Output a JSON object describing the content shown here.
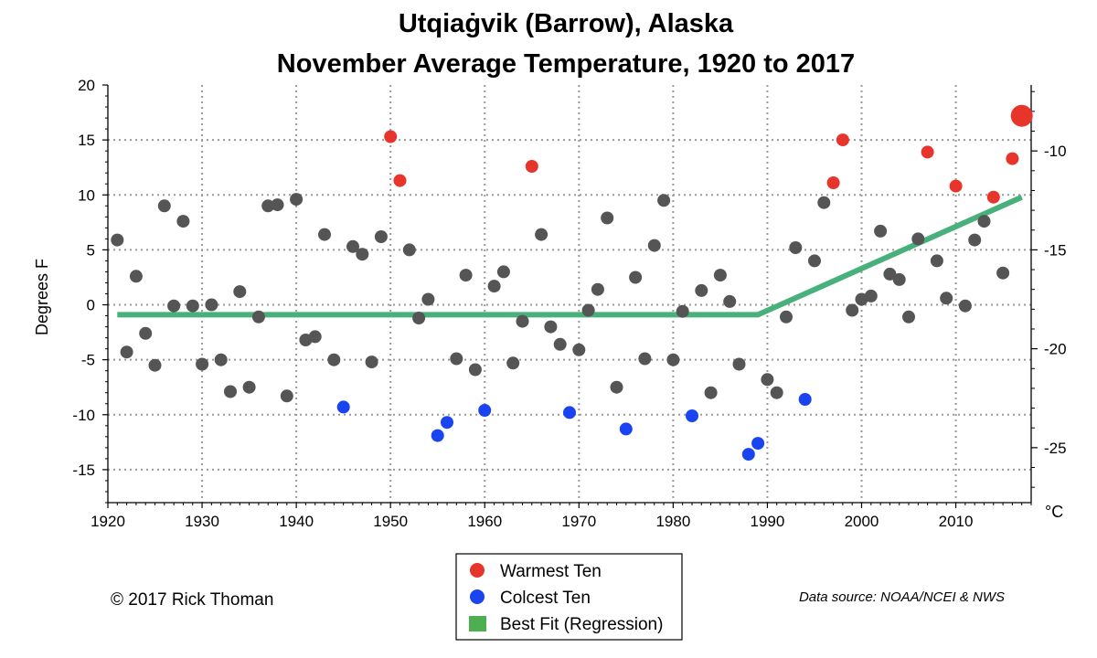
{
  "chart_data": {
    "type": "scatter",
    "title_line1": "Utqiaġvik (Barrow), Alaska",
    "title_line2": "November Average Temperature, 1920 to 2017",
    "ylabel": "Degrees F",
    "y2_unit": "°C",
    "xlim": [
      1920,
      2018
    ],
    "ylim": [
      -18,
      20
    ],
    "x_ticks": [
      1920,
      1930,
      1940,
      1950,
      1960,
      1970,
      1980,
      1990,
      2000,
      2010
    ],
    "y_ticks": [
      -15,
      -10,
      -5,
      0,
      5,
      10,
      15,
      20
    ],
    "y2_ticks": [
      -25,
      -20,
      -15,
      -10
    ],
    "grid": true,
    "colors": {
      "normal": "#555555",
      "warm": "#e8352b",
      "cold": "#1a44f0",
      "fit": "#48b07a",
      "legend_fit": "#4caf50"
    },
    "series": [
      {
        "name": "",
        "role": "normal",
        "points": [
          [
            1921,
            5.9
          ],
          [
            1922,
            -4.3
          ],
          [
            1923,
            2.6
          ],
          [
            1924,
            -2.6
          ],
          [
            1925,
            -5.5
          ],
          [
            1926,
            9.0
          ],
          [
            1927,
            -0.1
          ],
          [
            1928,
            7.6
          ],
          [
            1929,
            -0.1
          ],
          [
            1930,
            -5.4
          ],
          [
            1931,
            0.0
          ],
          [
            1932,
            -5.0
          ],
          [
            1933,
            -7.9
          ],
          [
            1934,
            1.2
          ],
          [
            1935,
            -7.5
          ],
          [
            1936,
            -1.1
          ],
          [
            1937,
            9.0
          ],
          [
            1938,
            9.1
          ],
          [
            1939,
            -8.3
          ],
          [
            1940,
            9.6
          ],
          [
            1941,
            -3.2
          ],
          [
            1942,
            -2.9
          ],
          [
            1943,
            6.4
          ],
          [
            1944,
            -5.0
          ],
          [
            1946,
            5.3
          ],
          [
            1947,
            4.6
          ],
          [
            1948,
            -5.2
          ],
          [
            1949,
            6.2
          ],
          [
            1952,
            5.0
          ],
          [
            1953,
            -1.2
          ],
          [
            1954,
            0.5
          ],
          [
            1957,
            -4.9
          ],
          [
            1958,
            2.7
          ],
          [
            1959,
            -5.9
          ],
          [
            1961,
            1.7
          ],
          [
            1962,
            3.0
          ],
          [
            1963,
            -5.3
          ],
          [
            1964,
            -1.5
          ],
          [
            1966,
            6.4
          ],
          [
            1967,
            -2.0
          ],
          [
            1968,
            -3.6
          ],
          [
            1970,
            -4.1
          ],
          [
            1971,
            -0.5
          ],
          [
            1972,
            1.4
          ],
          [
            1973,
            7.9
          ],
          [
            1974,
            -7.5
          ],
          [
            1976,
            2.5
          ],
          [
            1977,
            -4.9
          ],
          [
            1978,
            5.4
          ],
          [
            1979,
            9.5
          ],
          [
            1980,
            -5.0
          ],
          [
            1981,
            -0.6
          ],
          [
            1983,
            1.3
          ],
          [
            1984,
            -8.0
          ],
          [
            1985,
            2.7
          ],
          [
            1986,
            0.3
          ],
          [
            1987,
            -5.4
          ],
          [
            1990,
            -6.8
          ],
          [
            1991,
            -8.0
          ],
          [
            1992,
            -1.1
          ],
          [
            1993,
            5.2
          ],
          [
            1995,
            4.0
          ],
          [
            1996,
            9.3
          ],
          [
            1999,
            -0.5
          ],
          [
            2000,
            0.5
          ],
          [
            2001,
            0.8
          ],
          [
            2002,
            6.7
          ],
          [
            2003,
            2.8
          ],
          [
            2004,
            2.3
          ],
          [
            2005,
            -1.1
          ],
          [
            2006,
            6.0
          ],
          [
            2008,
            4.0
          ],
          [
            2009,
            0.6
          ],
          [
            2011,
            -0.1
          ],
          [
            2012,
            5.9
          ],
          [
            2013,
            7.6
          ],
          [
            2015,
            2.9
          ]
        ]
      },
      {
        "name": "Warmest Ten",
        "role": "warm",
        "points": [
          [
            1950,
            15.3
          ],
          [
            1951,
            11.3
          ],
          [
            1965,
            12.6
          ],
          [
            1997,
            11.1
          ],
          [
            1998,
            15.0
          ],
          [
            2007,
            13.9
          ],
          [
            2010,
            10.8
          ],
          [
            2014,
            9.8
          ],
          [
            2016,
            13.3
          ],
          [
            2017,
            17.2
          ]
        ]
      },
      {
        "name": "Colcest Ten",
        "role": "cold",
        "points": [
          [
            1945,
            -9.3
          ],
          [
            1955,
            -11.9
          ],
          [
            1956,
            -10.7
          ],
          [
            1960,
            -9.6
          ],
          [
            1969,
            -9.8
          ],
          [
            1975,
            -11.3
          ],
          [
            1982,
            -10.1
          ],
          [
            1988,
            -13.6
          ],
          [
            1989,
            -12.6
          ],
          [
            1994,
            -8.6
          ]
        ]
      },
      {
        "name": "Best Fit (Regression)",
        "role": "fit",
        "points": [
          [
            1921,
            -0.9
          ],
          [
            1989,
            -0.9
          ],
          [
            2017,
            9.8
          ]
        ]
      }
    ]
  },
  "legend": {
    "items": [
      {
        "label": "Warmest Ten",
        "role": "warm"
      },
      {
        "label": "Colcest Ten",
        "role": "cold"
      },
      {
        "label": "Best Fit (Regression)",
        "role": "fit"
      }
    ]
  },
  "footer": {
    "credit": "© 2017 Rick Thoman",
    "source": "Data source: NOAA/NCEI & NWS"
  }
}
